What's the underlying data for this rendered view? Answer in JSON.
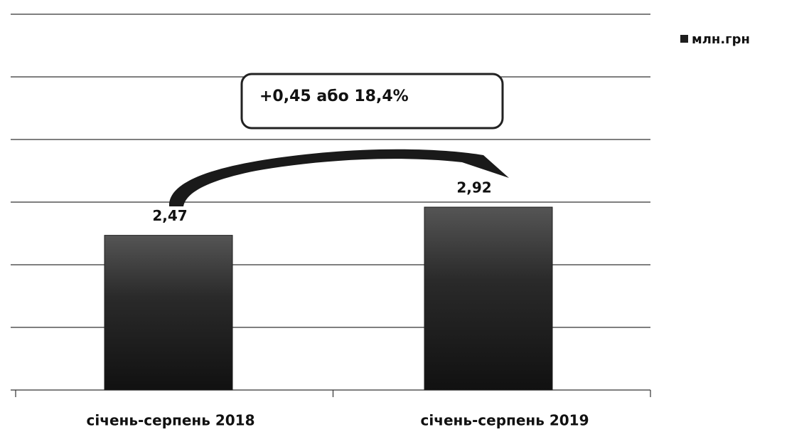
{
  "chart_data": {
    "type": "bar",
    "annotation": "+0,45 або 18,4%",
    "categories": [
      "січень-серпень 2018",
      "січень-серпень 2019"
    ],
    "series": [
      {
        "name": "млн.грн",
        "color": "#1e1e1e",
        "values": [
          2.47,
          2.92
        ],
        "value_labels": [
          "2,47",
          "2,92"
        ]
      }
    ],
    "ylim": [
      0,
      6
    ],
    "yticks": [
      0,
      1,
      2,
      3,
      4,
      5,
      6
    ],
    "grid": true,
    "legend": "top-right"
  }
}
